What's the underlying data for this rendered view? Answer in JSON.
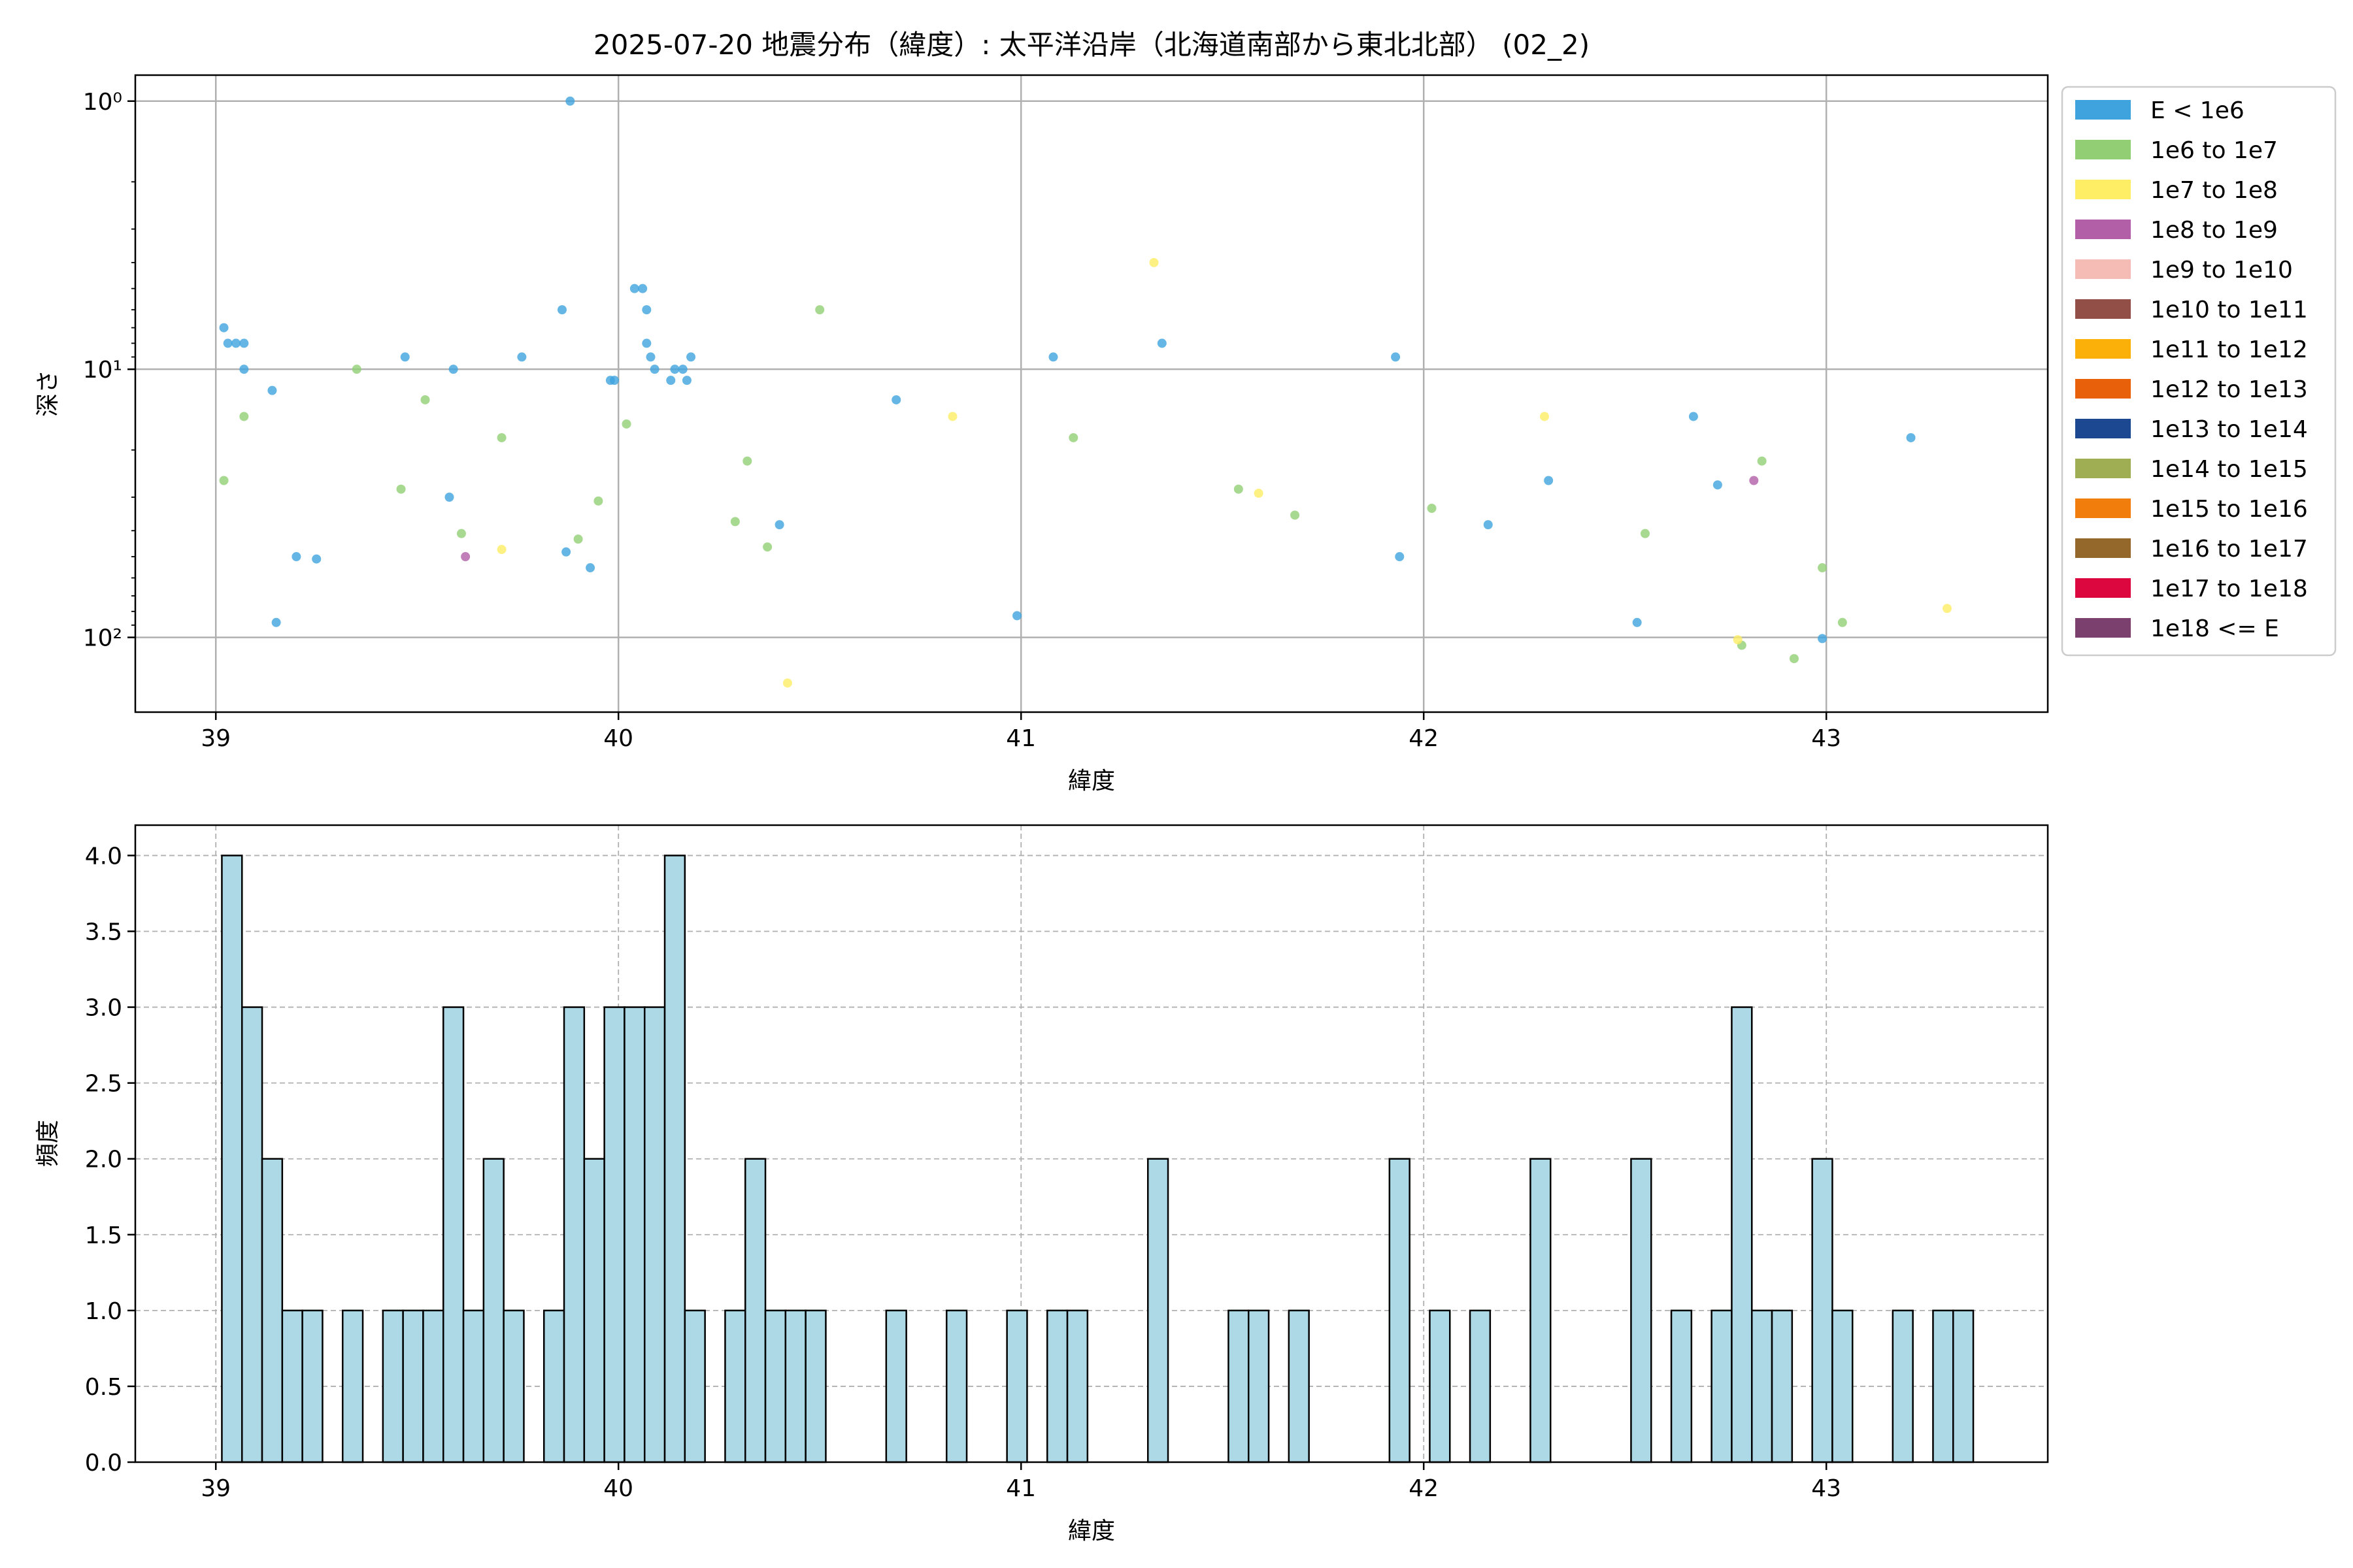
{
  "title": "2025-07-20 地震分布（緯度）: 太平洋沿岸（北海道南部から東北北部） (02_2)",
  "colors": {
    "bar_fill": "#add8e6",
    "bar_edge": "#000000",
    "grid": "#b0b0b0"
  },
  "chart_data": [
    {
      "type": "scatter",
      "xlabel": "緯度",
      "ylabel": "深さ",
      "y_scale": "log",
      "y_inverted": true,
      "xlim": [
        38.8,
        43.55
      ],
      "ylim": [
        190,
        0.8
      ],
      "x_ticks": [
        39,
        40,
        41,
        42,
        43
      ],
      "y_ticks": [
        {
          "value": 1,
          "label": "10⁰"
        },
        {
          "value": 10,
          "label": "10¹"
        },
        {
          "value": 100,
          "label": "10²"
        }
      ],
      "grid": true,
      "legend_position": "outside-right",
      "legend": [
        {
          "label": "E < 1e6",
          "color": "#3fa4de"
        },
        {
          "label": "1e6 to 1e7",
          "color": "#92cf74"
        },
        {
          "label": "1e7 to 1e8",
          "color": "#fdee65"
        },
        {
          "label": "1e8 to 1e9",
          "color": "#b25fa7"
        },
        {
          "label": "1e9 to 1e10",
          "color": "#f4bcb5"
        },
        {
          "label": "1e10 to 1e11",
          "color": "#924f48"
        },
        {
          "label": "1e11 to 1e12",
          "color": "#fab008"
        },
        {
          "label": "1e12 to 1e13",
          "color": "#e86009"
        },
        {
          "label": "1e13 to 1e14",
          "color": "#1c4892"
        },
        {
          "label": "1e14 to 1e15",
          "color": "#9fae53"
        },
        {
          "label": "1e15 to 1e16",
          "color": "#f17e0c"
        },
        {
          "label": "1e16 to 1e17",
          "color": "#94672a"
        },
        {
          "label": "1e17 to 1e18",
          "color": "#dc073f"
        },
        {
          "label": "1e18 <= E",
          "color": "#7c406f"
        }
      ],
      "series": [
        {
          "color": "#3fa4de",
          "points": [
            [
              39.02,
              7
            ],
            [
              39.03,
              8
            ],
            [
              39.05,
              8
            ],
            [
              39.07,
              8
            ],
            [
              39.07,
              10
            ],
            [
              39.14,
              12
            ],
            [
              39.15,
              88
            ],
            [
              39.2,
              50
            ],
            [
              39.25,
              51
            ],
            [
              39.47,
              9
            ],
            [
              39.58,
              30
            ],
            [
              39.59,
              10
            ],
            [
              39.76,
              9
            ],
            [
              39.86,
              6
            ],
            [
              39.87,
              48
            ],
            [
              39.88,
              1
            ],
            [
              39.93,
              55
            ],
            [
              39.98,
              11
            ],
            [
              39.99,
              11
            ],
            [
              40.04,
              5
            ],
            [
              40.06,
              5
            ],
            [
              40.07,
              6
            ],
            [
              40.07,
              8
            ],
            [
              40.08,
              9
            ],
            [
              40.09,
              10
            ],
            [
              40.13,
              11
            ],
            [
              40.14,
              10
            ],
            [
              40.16,
              10
            ],
            [
              40.17,
              11
            ],
            [
              40.18,
              9
            ],
            [
              40.4,
              38
            ],
            [
              40.69,
              13
            ],
            [
              40.99,
              83
            ],
            [
              41.08,
              9
            ],
            [
              41.35,
              8
            ],
            [
              41.93,
              9
            ],
            [
              41.94,
              50
            ],
            [
              42.16,
              38
            ],
            [
              42.31,
              26
            ],
            [
              42.53,
              88
            ],
            [
              42.67,
              15
            ],
            [
              42.73,
              27
            ],
            [
              42.99,
              101
            ],
            [
              43.21,
              18
            ]
          ]
        },
        {
          "color": "#92cf74",
          "points": [
            [
              39.02,
              26
            ],
            [
              39.07,
              15
            ],
            [
              39.35,
              10
            ],
            [
              39.46,
              28
            ],
            [
              39.52,
              13
            ],
            [
              39.61,
              41
            ],
            [
              39.71,
              18
            ],
            [
              39.9,
              43
            ],
            [
              39.95,
              31
            ],
            [
              40.02,
              16
            ],
            [
              40.29,
              37
            ],
            [
              40.32,
              22
            ],
            [
              40.37,
              46
            ],
            [
              40.5,
              6
            ],
            [
              41.13,
              18
            ],
            [
              41.54,
              28
            ],
            [
              41.68,
              35
            ],
            [
              42.02,
              33
            ],
            [
              42.55,
              41
            ],
            [
              42.79,
              107
            ],
            [
              42.84,
              22
            ],
            [
              42.92,
              120
            ],
            [
              42.99,
              55
            ],
            [
              43.04,
              88
            ]
          ]
        },
        {
          "color": "#fdee65",
          "points": [
            [
              39.71,
              47
            ],
            [
              40.42,
              148
            ],
            [
              40.83,
              15
            ],
            [
              41.33,
              4
            ],
            [
              41.59,
              29
            ],
            [
              42.3,
              15
            ],
            [
              42.78,
              102
            ],
            [
              43.3,
              78
            ]
          ]
        },
        {
          "color": "#b25fa7",
          "points": [
            [
              39.62,
              50
            ],
            [
              42.82,
              26
            ]
          ]
        }
      ]
    },
    {
      "type": "bar",
      "xlabel": "緯度",
      "ylabel": "頻度",
      "xlim": [
        38.8,
        43.55
      ],
      "ylim": [
        0,
        4.2
      ],
      "bin_width": 0.05,
      "x_ticks": [
        39,
        40,
        41,
        42,
        43
      ],
      "y_ticks": [
        "0.0",
        "0.5",
        "1.0",
        "1.5",
        "2.0",
        "2.5",
        "3.0",
        "3.5",
        "4.0"
      ],
      "grid": true,
      "bins": [
        [
          39.015,
          4
        ],
        [
          39.065,
          3
        ],
        [
          39.115,
          2
        ],
        [
          39.165,
          1
        ],
        [
          39.215,
          1
        ],
        [
          39.315,
          1
        ],
        [
          39.415,
          1
        ],
        [
          39.465,
          1
        ],
        [
          39.515,
          1
        ],
        [
          39.565,
          3
        ],
        [
          39.615,
          1
        ],
        [
          39.665,
          2
        ],
        [
          39.715,
          1
        ],
        [
          39.815,
          1
        ],
        [
          39.865,
          3
        ],
        [
          39.915,
          2
        ],
        [
          39.965,
          3
        ],
        [
          40.015,
          3
        ],
        [
          40.065,
          3
        ],
        [
          40.115,
          4
        ],
        [
          40.165,
          1
        ],
        [
          40.265,
          1
        ],
        [
          40.315,
          2
        ],
        [
          40.365,
          1
        ],
        [
          40.415,
          1
        ],
        [
          40.465,
          1
        ],
        [
          40.665,
          1
        ],
        [
          40.815,
          1
        ],
        [
          40.965,
          1
        ],
        [
          41.065,
          1
        ],
        [
          41.115,
          1
        ],
        [
          41.315,
          2
        ],
        [
          41.515,
          1
        ],
        [
          41.565,
          1
        ],
        [
          41.665,
          1
        ],
        [
          41.915,
          2
        ],
        [
          42.015,
          1
        ],
        [
          42.115,
          1
        ],
        [
          42.265,
          2
        ],
        [
          42.515,
          2
        ],
        [
          42.615,
          1
        ],
        [
          42.715,
          1
        ],
        [
          42.765,
          3
        ],
        [
          42.815,
          1
        ],
        [
          42.865,
          1
        ],
        [
          42.965,
          2
        ],
        [
          43.015,
          1
        ],
        [
          43.165,
          1
        ],
        [
          43.265,
          1
        ],
        [
          43.315,
          1
        ]
      ]
    }
  ]
}
